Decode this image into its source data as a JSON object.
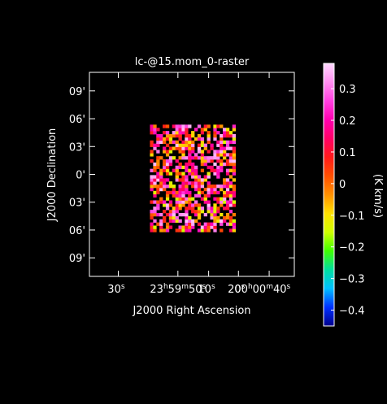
{
  "chart_data": {
    "type": "heatmap",
    "title": "lc-@15.mom_0-raster",
    "xlabel": "J2000 Right Ascension",
    "ylabel": "J2000 Declination",
    "x_ticks": [
      {
        "h": "00",
        "m": "00",
        "s": "40"
      },
      {
        "s": "20"
      },
      {
        "s": "10"
      },
      {
        "h": "23",
        "m": "59",
        "s": "50"
      },
      {
        "s": "30"
      }
    ],
    "y_ticks": [
      "09'",
      "06'",
      "03'",
      "0'",
      "03'",
      "06'",
      "09'"
    ],
    "colorbar": {
      "label": "(K km/s)",
      "range": [
        -0.45,
        0.38
      ],
      "ticks": [
        "0.3",
        "0.2",
        "0.1",
        "0",
        "−0.1",
        "−0.2",
        "−0.3",
        "−0.4"
      ],
      "tick_values": [
        0.3,
        0.2,
        0.1,
        0.0,
        -0.1,
        -0.2,
        -0.3,
        -0.4
      ],
      "colormap": [
        "#00008c",
        "#0030ff",
        "#00c0ff",
        "#00e0a0",
        "#40ff00",
        "#d0ff00",
        "#ffe000",
        "#ff9000",
        "#ff5000",
        "#ff1a1a",
        "#ff0066",
        "#ff00b0",
        "#ff40e0",
        "#ff90f0",
        "#ffd8ff"
      ]
    },
    "field_extent_arcmin": {
      "ra": [
        -4.5,
        4.5
      ],
      "dec": [
        -6.2,
        5.2
      ]
    },
    "value_range": [
      -0.45,
      0.38
    ]
  }
}
